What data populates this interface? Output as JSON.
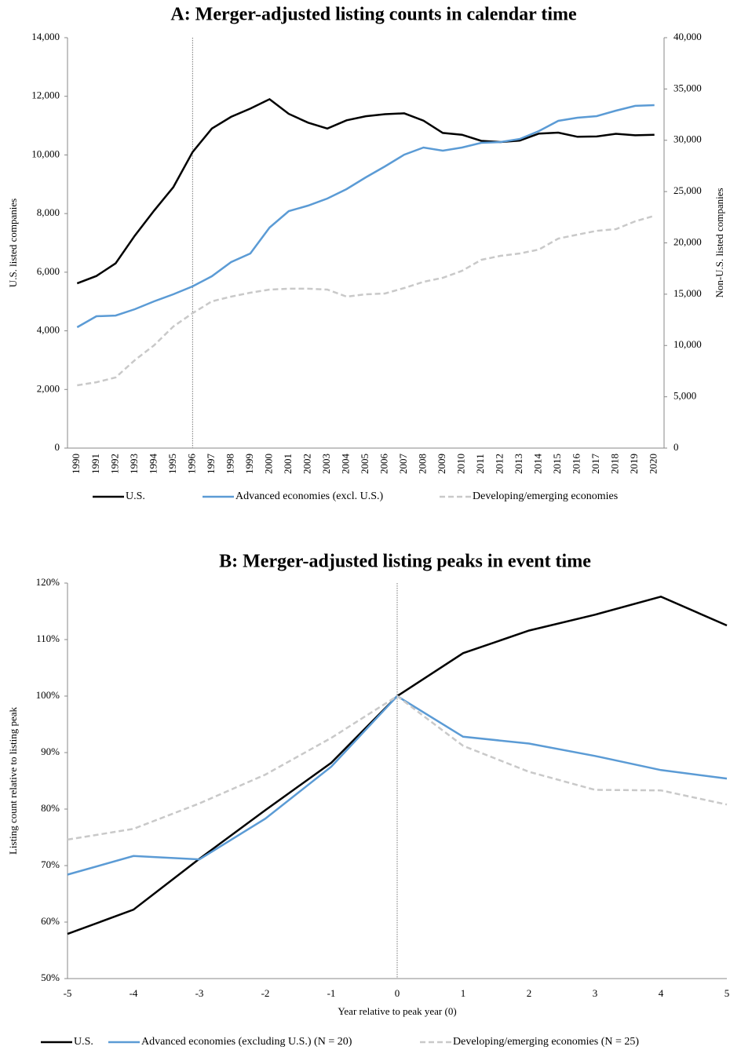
{
  "chart_data": [
    {
      "type": "line",
      "title": "A: Merger-adjusted listing counts in calendar time",
      "y_label": "U.S. listed companies",
      "y2_label": "Non-U.S. listed companies",
      "categories": [
        "1990",
        "1991",
        "1992",
        "1993",
        "1994",
        "1995",
        "1996",
        "1997",
        "1998",
        "1999",
        "2000",
        "2001",
        "2002",
        "2003",
        "2004",
        "2005",
        "2006",
        "2007",
        "2008",
        "2009",
        "2010",
        "2011",
        "2012",
        "2013",
        "2014",
        "2015",
        "2016",
        "2017",
        "2018",
        "2019",
        "2020"
      ],
      "ylim": [
        0,
        14000
      ],
      "yticks": [
        0,
        {
          "value": 2000,
          "label": "2,000"
        },
        {
          "value": 4000,
          "label": "4,000"
        },
        {
          "value": 6000,
          "label": "6,000"
        },
        {
          "value": 8000,
          "label": "8,000"
        },
        {
          "value": 10000,
          "label": "10,000"
        },
        {
          "value": 12000,
          "label": "12,000"
        },
        {
          "value": 14000,
          "label": "14,000"
        }
      ],
      "y2lim": [
        0,
        40000
      ],
      "y2ticks": [
        0,
        {
          "value": 5000,
          "label": "5,000"
        },
        {
          "value": 10000,
          "label": "10,000"
        },
        {
          "value": 15000,
          "label": "15,000"
        },
        {
          "value": 20000,
          "label": "20,000"
        },
        {
          "value": 25000,
          "label": "25,000"
        },
        {
          "value": 30000,
          "label": "30,000"
        },
        {
          "value": 35000,
          "label": "35,000"
        },
        {
          "value": 40000,
          "label": "40,000"
        }
      ],
      "vline": "1996",
      "series": [
        {
          "name": "U.S.",
          "color": "#000000",
          "values": [
            5620,
            5870,
            6300,
            7250,
            8100,
            8900,
            10100,
            10900,
            11300,
            11580,
            11900,
            11400,
            11100,
            10900,
            11180,
            11320,
            11390,
            11420,
            11170,
            10750,
            10690,
            10480,
            10440,
            10490,
            10730,
            10760,
            10620,
            10630,
            10720,
            10670,
            10690
          ]
        },
        {
          "name": "Advanced economies (excl. U.S.)",
          "color": "#5b9bd5",
          "axis": "y2",
          "values": [
            11780,
            12850,
            12920,
            13540,
            14300,
            14990,
            15760,
            16750,
            18130,
            18970,
            21490,
            23100,
            23630,
            24320,
            25240,
            26390,
            27460,
            28600,
            29290,
            28990,
            29290,
            29750,
            29830,
            30130,
            30900,
            31890,
            32200,
            32350,
            32890,
            33350,
            33420
          ]
        },
        {
          "name": "Developing/emerging economies",
          "color": "#c9c9c9",
          "axis": "y2",
          "dashed": true,
          "values": [
            6120,
            6420,
            6880,
            8570,
            10020,
            11850,
            13150,
            14300,
            14760,
            15140,
            15450,
            15530,
            15530,
            15450,
            14760,
            14990,
            15070,
            15600,
            16210,
            16600,
            17280,
            18350,
            18740,
            18970,
            19350,
            20420,
            20800,
            21180,
            21340,
            22100,
            22640
          ]
        }
      ]
    },
    {
      "type": "line",
      "title": "B: Merger-adjusted listing peaks in event time",
      "x_label": "Year relative to peak year (0)",
      "y_label": "Listing count relative to listing peak",
      "x": [
        -5,
        -4,
        -3,
        -2,
        -1,
        0,
        1,
        2,
        3,
        4,
        5
      ],
      "xlim": [
        -5,
        5
      ],
      "xticks": [
        -5,
        -4,
        -3,
        -2,
        -1,
        0,
        1,
        2,
        3,
        4,
        5
      ],
      "ylim": [
        50,
        120
      ],
      "yticks": [
        {
          "value": 50,
          "label": "50%"
        },
        {
          "value": 60,
          "label": "60%"
        },
        {
          "value": 70,
          "label": "70%"
        },
        {
          "value": 80,
          "label": "80%"
        },
        {
          "value": 90,
          "label": "90%"
        },
        {
          "value": 100,
          "label": "100%"
        },
        {
          "value": 110,
          "label": "110%"
        },
        {
          "value": 120,
          "label": "120%"
        }
      ],
      "vline": 0,
      "series": [
        {
          "name": "U.S.",
          "color": "#000000",
          "values": [
            57.9,
            62.2,
            71.2,
            79.8,
            88.2,
            100,
            107.6,
            111.6,
            114.4,
            117.6,
            112.5
          ]
        },
        {
          "name": "Advanced economies (excluding U.S.) (N = 20)",
          "color": "#5b9bd5",
          "values": [
            68.4,
            71.7,
            71.1,
            78.3,
            87.5,
            100,
            92.8,
            91.6,
            89.4,
            86.9,
            85.4
          ]
        },
        {
          "name": "Developing/emerging economies (N = 25)",
          "color": "#c9c9c9",
          "dashed": true,
          "values": [
            74.6,
            76.5,
            81,
            86.1,
            92.6,
            100,
            91.2,
            86.6,
            83.4,
            83.3,
            80.8
          ]
        }
      ]
    }
  ]
}
